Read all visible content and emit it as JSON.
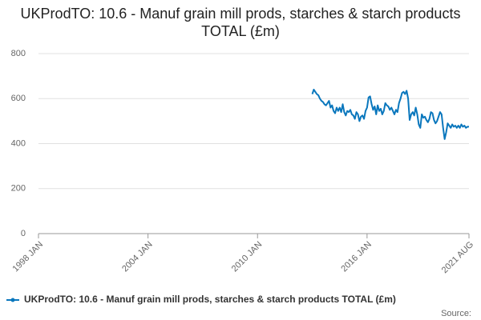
{
  "chart_data": {
    "type": "line",
    "title": "UKProdTO: 10.6 - Manuf grain mill prods, starches & starch products TOTAL (£m)",
    "source": "Source:",
    "categories": [
      "1998 JAN",
      null,
      null,
      null,
      null,
      null,
      null,
      null,
      null,
      null,
      null,
      null,
      null,
      null,
      null,
      null,
      null,
      null,
      null,
      null,
      null,
      null,
      null,
      null,
      null,
      null,
      null,
      null,
      null,
      null,
      null,
      null,
      null,
      null,
      null,
      null,
      null,
      null,
      null,
      null,
      null,
      null,
      null,
      null,
      null,
      null,
      null,
      null,
      null,
      null,
      null,
      null,
      null,
      null,
      null,
      null,
      null,
      null,
      null,
      null,
      null,
      null,
      null,
      null,
      null,
      null,
      null,
      null,
      null,
      null,
      null,
      null,
      "2004 JAN",
      null,
      null,
      null,
      null,
      null,
      null,
      null,
      null,
      null,
      null,
      null,
      null,
      null,
      null,
      null,
      null,
      null,
      null,
      null,
      null,
      null,
      null,
      null,
      null,
      null,
      null,
      null,
      null,
      null,
      null,
      null,
      null,
      null,
      null,
      null,
      null,
      null,
      null,
      null,
      null,
      null,
      null,
      null,
      null,
      null,
      null,
      null,
      null,
      null,
      null,
      null,
      null,
      null,
      null,
      null,
      null,
      null,
      null,
      null,
      null,
      null,
      null,
      null,
      null,
      null,
      null,
      null,
      null,
      null,
      null,
      null,
      "2010 JAN",
      null,
      null,
      null,
      null,
      null,
      null,
      null,
      null,
      null,
      null,
      null,
      null,
      null,
      null,
      null,
      null,
      null,
      null,
      null,
      null,
      null,
      null,
      null,
      null,
      null,
      null,
      null,
      null,
      null,
      null,
      null,
      null,
      null,
      null,
      null,
      null,
      null,
      null,
      null,
      null,
      null,
      null,
      null,
      null,
      null,
      null,
      null,
      null,
      null,
      null,
      null,
      null,
      null,
      null,
      null,
      null,
      null,
      null,
      null,
      null,
      null,
      null,
      null,
      null,
      null,
      null,
      null,
      null,
      null,
      null,
      null,
      "2016 JAN",
      null,
      null,
      null,
      null,
      null,
      null,
      null,
      null,
      null,
      null,
      null,
      null,
      null,
      null,
      null,
      null,
      null,
      null,
      null,
      null,
      null,
      null,
      null,
      null,
      null,
      null,
      null,
      null,
      null,
      null,
      null,
      null,
      null,
      null,
      null,
      null,
      null,
      null,
      null,
      null,
      null,
      null,
      null,
      null,
      null,
      null,
      null,
      null,
      null,
      null,
      null,
      null,
      null,
      null,
      null,
      null,
      null,
      null,
      null,
      null,
      null,
      null,
      null,
      null,
      null,
      null,
      "2021 AUG"
    ],
    "series": [
      {
        "name": "UKProdTO: 10.6 - Manuf grain mill prods, starches & starch products TOTAL (£m)",
        "color": "#0a77bd",
        "values": [
          null,
          null,
          null,
          null,
          null,
          null,
          null,
          null,
          null,
          null,
          null,
          null,
          null,
          null,
          null,
          null,
          null,
          null,
          null,
          null,
          null,
          null,
          null,
          null,
          null,
          null,
          null,
          null,
          null,
          null,
          null,
          null,
          null,
          null,
          null,
          null,
          null,
          null,
          null,
          null,
          null,
          null,
          null,
          null,
          null,
          null,
          null,
          null,
          null,
          null,
          null,
          null,
          null,
          null,
          null,
          null,
          null,
          null,
          null,
          null,
          null,
          null,
          null,
          null,
          null,
          null,
          null,
          null,
          null,
          null,
          null,
          null,
          null,
          null,
          null,
          null,
          null,
          null,
          null,
          null,
          null,
          null,
          null,
          null,
          null,
          null,
          null,
          null,
          null,
          null,
          null,
          null,
          null,
          null,
          null,
          null,
          null,
          null,
          null,
          null,
          null,
          null,
          null,
          null,
          null,
          null,
          null,
          null,
          null,
          null,
          null,
          null,
          null,
          null,
          null,
          null,
          null,
          null,
          null,
          null,
          null,
          null,
          null,
          null,
          null,
          null,
          null,
          null,
          null,
          null,
          null,
          null,
          null,
          null,
          null,
          null,
          null,
          null,
          null,
          null,
          null,
          null,
          null,
          null,
          null,
          null,
          null,
          null,
          null,
          null,
          null,
          null,
          null,
          null,
          null,
          null,
          null,
          null,
          null,
          null,
          null,
          null,
          null,
          null,
          null,
          null,
          null,
          null,
          null,
          null,
          null,
          null,
          null,
          null,
          null,
          null,
          null,
          null,
          null,
          null,
          620,
          640,
          630,
          620,
          615,
          600,
          590,
          585,
          575,
          570,
          580,
          590,
          560,
          570,
          545,
          535,
          560,
          545,
          560,
          540,
          575,
          540,
          525,
          545,
          540,
          550,
          530,
          525,
          510,
          540,
          530,
          500,
          520,
          525,
          510,
          545,
          560,
          605,
          610,
          575,
          550,
          565,
          530,
          570,
          545,
          555,
          530,
          545,
          580,
          570,
          565,
          550,
          560,
          545,
          530,
          550,
          540,
          580,
          600,
          625,
          630,
          620,
          635,
          600,
          505,
          530,
          540,
          525,
          560,
          530,
          485,
          470,
          530,
          515,
          520,
          505,
          495,
          510,
          540,
          535,
          505,
          490,
          500,
          520,
          540,
          530,
          470,
          420,
          450,
          490,
          480,
          470,
          485,
          475,
          480,
          470,
          480,
          470,
          485,
          475,
          480,
          470,
          475,
          475
        ]
      }
    ],
    "ylim": [
      0,
      800
    ],
    "yticks": [
      0,
      200,
      400,
      600,
      800
    ],
    "grid": true
  }
}
